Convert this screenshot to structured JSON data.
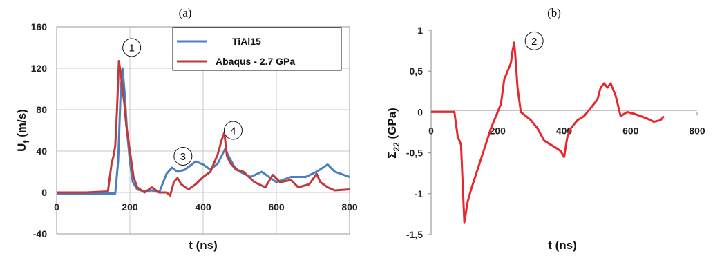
{
  "chart_data": [
    {
      "type": "line",
      "panel_label": "(a)",
      "xlabel": "t (ns)",
      "ylabel_main": "U",
      "ylabel_sub": "f",
      "ylabel_unit": " (m/s)",
      "xlim": [
        0,
        800
      ],
      "ylim": [
        -40,
        160
      ],
      "xticks": [
        "0",
        "200",
        "400",
        "600",
        "800"
      ],
      "yticks": [
        "-40",
        "0",
        "40",
        "80",
        "120",
        "160"
      ],
      "grid": true,
      "legend_position": "top-right",
      "series": [
        {
          "name": "TiAl15",
          "color": "#4a7fc1",
          "x": [
            0,
            80,
            150,
            160,
            168,
            175,
            180,
            186,
            192,
            200,
            208,
            220,
            240,
            260,
            280,
            300,
            315,
            330,
            350,
            380,
            400,
            420,
            440,
            460,
            470,
            485,
            500,
            530,
            560,
            600,
            640,
            680,
            710,
            740,
            760,
            800
          ],
          "y": [
            -1,
            -1,
            -1,
            -1,
            30,
            100,
            120,
            95,
            60,
            30,
            10,
            3,
            1,
            2,
            0,
            18,
            24,
            20,
            22,
            30,
            27,
            22,
            28,
            42,
            35,
            25,
            20,
            15,
            20,
            10,
            15,
            15,
            20,
            27,
            20,
            15
          ]
        },
        {
          "name": "Abaqus - 2.7 GPa",
          "color": "#c0393b",
          "x": [
            0,
            80,
            140,
            150,
            155,
            160,
            165,
            170,
            175,
            180,
            185,
            190,
            200,
            210,
            220,
            240,
            260,
            280,
            300,
            310,
            320,
            330,
            340,
            360,
            380,
            400,
            420,
            440,
            450,
            458,
            465,
            475,
            490,
            510,
            540,
            570,
            590,
            610,
            640,
            660,
            690,
            710,
            720,
            740,
            760,
            800
          ],
          "y": [
            0,
            0,
            1,
            28,
            35,
            45,
            80,
            127,
            115,
            100,
            85,
            65,
            40,
            15,
            5,
            0,
            5,
            0,
            0,
            -3,
            10,
            14,
            8,
            3,
            8,
            15,
            20,
            37,
            50,
            58,
            35,
            28,
            22,
            20,
            10,
            5,
            17,
            10,
            12,
            5,
            8,
            18,
            10,
            5,
            2,
            3
          ]
        }
      ],
      "annotations": [
        {
          "text": "1",
          "x": 205,
          "y": 140
        },
        {
          "text": "3",
          "x": 345,
          "y": 35
        },
        {
          "text": "4",
          "x": 482,
          "y": 60
        }
      ]
    },
    {
      "type": "line",
      "panel_label": "(b)",
      "xlabel": "t (ns)",
      "ylabel_main": "Σ",
      "ylabel_sub": "22",
      "ylabel_unit": " (GPa)",
      "xlim": [
        0,
        800
      ],
      "ylim": [
        -1.5,
        1
      ],
      "xticks": [
        "0",
        "200",
        "400",
        "600",
        "800"
      ],
      "yticks": [
        "-1,5",
        "-1",
        "-0,5",
        "0",
        "0,5",
        "1"
      ],
      "grid": false,
      "series": [
        {
          "color": "#e8272c",
          "x": [
            0,
            70,
            80,
            90,
            100,
            110,
            120,
            140,
            160,
            180,
            200,
            210,
            220,
            230,
            240,
            245,
            250,
            255,
            260,
            270,
            285,
            300,
            320,
            340,
            360,
            380,
            390,
            400,
            410,
            420,
            440,
            460,
            480,
            500,
            510,
            520,
            530,
            540,
            555,
            570,
            590,
            610,
            630,
            650,
            670,
            690,
            700
          ],
          "y": [
            0,
            0,
            -0.3,
            -0.4,
            -1.35,
            -1.1,
            -0.95,
            -0.7,
            -0.45,
            -0.2,
            0,
            0.1,
            0.4,
            0.5,
            0.6,
            0.75,
            0.85,
            0.6,
            0.3,
            0,
            -0.05,
            -0.1,
            -0.2,
            -0.35,
            -0.4,
            -0.45,
            -0.48,
            -0.55,
            -0.3,
            -0.2,
            -0.1,
            -0.05,
            0.05,
            0.15,
            0.3,
            0.35,
            0.3,
            0.35,
            0.2,
            -0.05,
            0,
            -0.02,
            -0.05,
            -0.08,
            -0.12,
            -0.1,
            -0.05
          ]
        }
      ],
      "annotations": [
        {
          "text": "2",
          "x": 310,
          "y": 0.87
        }
      ]
    }
  ]
}
